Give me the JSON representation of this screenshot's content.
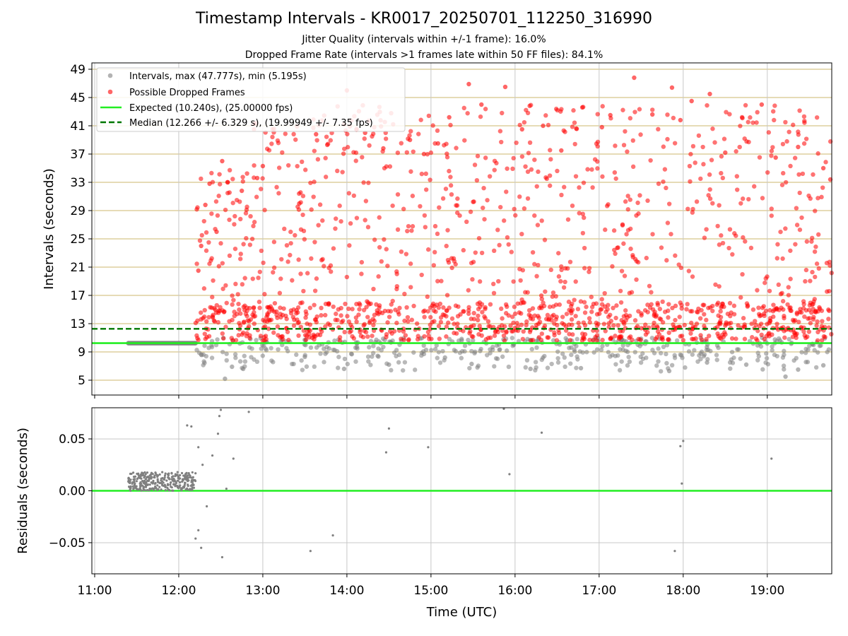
{
  "title": "Timestamp Intervals - KR0017_20250701_112250_316990",
  "subtitle_1": "Jitter Quality (intervals within +/-1 frame): 16.0%",
  "subtitle_2": "Dropped Frame Rate (intervals >1 frames late within 50 FF files): 84.1%",
  "colors": {
    "intervals": "#808080",
    "dropped": "#ff0000",
    "expected": "#22ee22",
    "median": "#007700",
    "hgrid_top": "#d8c58a",
    "grid": "#c8c8c8"
  },
  "chart_data": [
    {
      "type": "scatter",
      "ylabel": "Intervals (seconds)",
      "xlim": [
        "10:58",
        "19:46"
      ],
      "ylim": [
        2.9,
        49.9
      ],
      "yticks": [
        "5",
        "9",
        "13",
        "17",
        "21",
        "25",
        "29",
        "33",
        "37",
        "41",
        "45",
        "49"
      ],
      "grid": "horizontal at each y tick, vertical at each hour",
      "legend_position": "upper-left",
      "legend": [
        "Intervals, max (47.777s), min (5.195s)",
        "Possible Dropped Frames",
        "Expected (10.240s), (25.00000 fps)",
        "Median (12.266 +/- 6.329 s), (19.99949 +/- 7.35 fps)"
      ],
      "expected_line": 10.24,
      "median_line": 12.266,
      "interval_stats": {
        "max": 47.777,
        "min": 5.195
      },
      "series": [
        {
          "name": "Intervals, max (47.777s), min (5.195s)",
          "time_range": [
            "11:24",
            "19:46"
          ],
          "typical_range": [
            6.0,
            11.0
          ],
          "notes": "dense band at 10.24 s from 11:24 to 12:12, scattered 6-11 s afterwards",
          "points": [
            [
              "11:24",
              10.24
            ],
            [
              "12:00",
              10.24
            ],
            [
              "12:12",
              10.24
            ],
            [
              "12:33",
              5.2
            ],
            [
              "12:38",
              6.9
            ],
            [
              "12:46",
              6.6
            ],
            [
              "13:30",
              8.3
            ],
            [
              "13:58",
              6.6
            ],
            [
              "14:30",
              7.2
            ],
            [
              "15:10",
              8.2
            ],
            [
              "15:29",
              7.3
            ],
            [
              "16:11",
              6.6
            ],
            [
              "16:47",
              6.7
            ],
            [
              "17:50",
              6.3
            ],
            [
              "18:17",
              7.5
            ],
            [
              "18:45",
              7.2
            ],
            [
              "19:13",
              5.5
            ],
            [
              "19:22",
              6.5
            ],
            [
              "19:40",
              7.1
            ]
          ]
        },
        {
          "name": "Possible Dropped Frames",
          "time_range": [
            "12:12",
            "19:46"
          ],
          "notes": "hundreds of points between ~10.5 s and 47.8 s, dense 11-16 s band, sparser up to ~44 s",
          "points": [
            [
              "12:14",
              20.5
            ],
            [
              "12:16",
              24.0
            ],
            [
              "12:19",
              29.8
            ],
            [
              "12:22",
              32.8
            ],
            [
              "12:27",
              26.0
            ],
            [
              "12:31",
              36.0
            ],
            [
              "12:35",
              33.0
            ],
            [
              "12:45",
              31.8
            ],
            [
              "12:56",
              33.6
            ],
            [
              "13:00",
              35.3
            ],
            [
              "13:26",
              30.0
            ],
            [
              "13:38",
              39.8
            ],
            [
              "13:46",
              38.3
            ],
            [
              "13:58",
              41.2
            ],
            [
              "14:00",
              46.0
            ],
            [
              "14:13",
              40.0
            ],
            [
              "14:26",
              37.8
            ],
            [
              "14:45",
              39.0
            ],
            [
              "14:55",
              37.0
            ],
            [
              "15:05",
              38.5
            ],
            [
              "15:13",
              42.2
            ],
            [
              "15:27",
              46.9
            ],
            [
              "15:36",
              44.0
            ],
            [
              "15:53",
              46.5
            ],
            [
              "16:05",
              40.5
            ],
            [
              "16:20",
              41.0
            ],
            [
              "16:33",
              37.5
            ],
            [
              "16:48",
              43.6
            ],
            [
              "17:02",
              40.8
            ],
            [
              "17:08",
              42.5
            ],
            [
              "17:25",
              47.8
            ],
            [
              "17:38",
              42.6
            ],
            [
              "17:52",
              46.4
            ],
            [
              "17:58",
              41.8
            ],
            [
              "18:06",
              44.5
            ],
            [
              "18:19",
              45.5
            ],
            [
              "18:30",
              37.2
            ],
            [
              "18:42",
              42.2
            ],
            [
              "18:56",
              44.0
            ],
            [
              "19:06",
              36.5
            ],
            [
              "19:22",
              38.0
            ],
            [
              "19:40",
              35.0
            ],
            [
              "19:45",
              33.4
            ]
          ]
        }
      ]
    },
    {
      "type": "scatter",
      "xlabel": "Time (UTC)",
      "ylabel": "Residuals (seconds)",
      "xlim": [
        "10:58",
        "19:46"
      ],
      "ylim": [
        -0.08,
        0.08
      ],
      "xticks": [
        "11:00",
        "12:00",
        "13:00",
        "14:00",
        "15:00",
        "16:00",
        "17:00",
        "18:00",
        "19:00"
      ],
      "yticks": [
        "−0.05",
        "0.00",
        "0.05"
      ],
      "grid": "both",
      "zero_line": 0.0,
      "series": [
        {
          "name": "residuals",
          "cluster": {
            "time_range": [
              "11:24",
              "12:12"
            ],
            "value_range": [
              0.0,
              0.018
            ]
          },
          "points": [
            [
              "12:06",
              0.063
            ],
            [
              "12:09",
              0.062
            ],
            [
              "12:14",
              0.042
            ],
            [
              "12:17",
              0.025
            ],
            [
              "12:20",
              -0.015
            ],
            [
              "12:24",
              0.034
            ],
            [
              "12:28",
              0.055
            ],
            [
              "12:29",
              0.072
            ],
            [
              "12:30",
              0.078
            ],
            [
              "12:14",
              -0.038
            ],
            [
              "12:12",
              -0.046
            ],
            [
              "12:16",
              -0.055
            ],
            [
              "12:31",
              -0.064
            ],
            [
              "12:39",
              0.031
            ],
            [
              "12:34",
              0.002
            ],
            [
              "12:50",
              0.076
            ],
            [
              "13:34",
              -0.058
            ],
            [
              "13:50",
              -0.043
            ],
            [
              "14:28",
              0.037
            ],
            [
              "14:30",
              0.06
            ],
            [
              "14:58",
              0.042
            ],
            [
              "15:52",
              0.079
            ],
            [
              "15:56",
              0.016
            ],
            [
              "16:19",
              0.056
            ],
            [
              "17:54",
              -0.058
            ],
            [
              "17:58",
              0.043
            ],
            [
              "17:59",
              0.007
            ],
            [
              "18:00",
              0.048
            ],
            [
              "19:03",
              0.031
            ]
          ]
        }
      ]
    }
  ]
}
